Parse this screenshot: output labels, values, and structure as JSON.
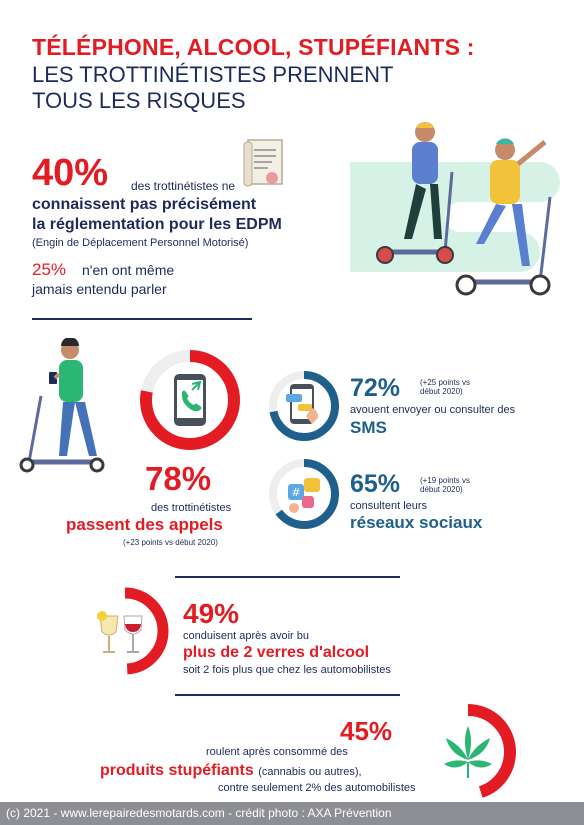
{
  "title": {
    "line1": "TÉLÉPHONE, ALCOOL, STUPÉFIANTS :",
    "line2": "LES TROTTINÉTISTES PRENNENT",
    "line3": "TOUS LES RISQUES"
  },
  "stat_edpm": {
    "value": "40%",
    "lead": "des trottinétistes ne",
    "bold1": "connaissent pas précisément",
    "bold2": "la réglementation pour les EDPM",
    "note": "(Engin de Déplacement Personnel Motorisé)",
    "sub_value": "25%",
    "sub_text1": "n'en ont même",
    "sub_text2": "jamais entendu parler"
  },
  "stat_calls": {
    "value": "78%",
    "text": "des trottinétistes",
    "bold": "passent des appels",
    "note": "(+23 points vs début 2020)",
    "fraction": 0.78
  },
  "stat_sms": {
    "value": "72%",
    "note1": "(+25 points vs",
    "note2": "début 2020)",
    "text": "avouent envoyer ou consulter des",
    "bold": "SMS",
    "fraction": 0.72
  },
  "stat_social": {
    "value": "65%",
    "note1": "(+19 points vs",
    "note2": "début 2020)",
    "text": "consultent leurs",
    "bold": "réseaux sociaux",
    "fraction": 0.65
  },
  "stat_alcohol": {
    "value": "49%",
    "text": "conduisent après avoir bu",
    "bold": "plus de 2 verres d'alcool",
    "sub": "soit 2 fois plus que chez les automobilistes",
    "fraction": 0.49
  },
  "stat_drugs": {
    "value": "45%",
    "text": "roulent après consommé des",
    "bold": "produits stupéfiants",
    "bold_suffix": "(cannabis ou autres),",
    "sub": "contre seulement 2% des automobilistes",
    "fraction": 0.45
  },
  "footer": {
    "text": "(c) 2021 - www.lerepairedesmotards.com  - crédit photo : AXA Prévention"
  },
  "colors": {
    "red": "#e31c24",
    "navy": "#1d2b5a",
    "teal_blue": "#1e5f8c",
    "mint": "#d6f2e6",
    "green_leaf": "#2bb673"
  },
  "icons": [
    "document-icon",
    "scooter-riders-illustration",
    "scooter-rider-phone-illustration",
    "phone-call-icon",
    "sms-phone-icon",
    "social-media-icon",
    "wine-glasses-icon",
    "cannabis-leaf-icon"
  ]
}
